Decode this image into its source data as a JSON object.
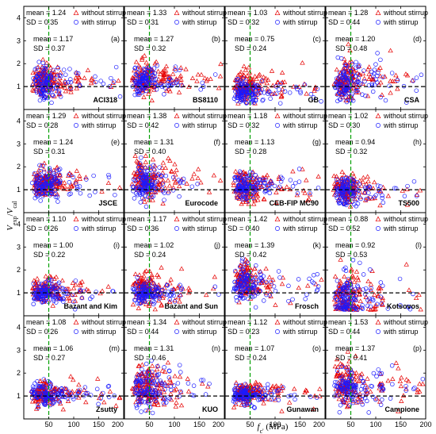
{
  "ylabel": "V_exp/V_cal",
  "xlabel": "f_c' (MPa)",
  "chart_data": {
    "type": "scatter",
    "layout": "4x4 grid of panels sharing axes",
    "xlim": [
      0,
      200
    ],
    "ylim": [
      0,
      4.5
    ],
    "xticks": [
      50,
      100,
      150,
      200
    ],
    "xtick_labels": [
      "50",
      "100",
      "150",
      "200"
    ],
    "yticks": [
      1,
      2,
      3,
      4
    ],
    "ytick_labels": [
      "1",
      "2",
      "3",
      "4"
    ],
    "reference_lines": {
      "horizontal_y": 1.0,
      "vertical_x": 50
    },
    "legend": {
      "placement": "top-right",
      "entries": [
        {
          "name": "without stirrup",
          "marker": "triangle",
          "color": "#e60000"
        },
        {
          "name": "with stirrup",
          "marker": "circle",
          "color": "#1a1aff"
        }
      ]
    },
    "panels": [
      {
        "letter": "(a)",
        "code": "ACI318",
        "without": {
          "mean": "1.24",
          "sd": "0.35"
        },
        "with": {
          "mean": "1.17",
          "sd": "0.37"
        }
      },
      {
        "letter": "(b)",
        "code": "BS8110",
        "without": {
          "mean": "1.33",
          "sd": "0.31"
        },
        "with": {
          "mean": "1.27",
          "sd": "0.32"
        }
      },
      {
        "letter": "(c)",
        "code": "GB",
        "without": {
          "mean": "1.03",
          "sd": "0.32"
        },
        "with": {
          "mean": "0.75",
          "sd": "0.24"
        }
      },
      {
        "letter": "(d)",
        "code": "CSA",
        "without": {
          "mean": "1.28",
          "sd": "0.44"
        },
        "with": {
          "mean": "1.20",
          "sd": "0.48"
        }
      },
      {
        "letter": "(e)",
        "code": "JSCE",
        "without": {
          "mean": "1.29",
          "sd": "0.28"
        },
        "with": {
          "mean": "1.24",
          "sd": "0.31"
        }
      },
      {
        "letter": "(f)",
        "code": "Eurocode",
        "without": {
          "mean": "1.38",
          "sd": "0.42"
        },
        "with": {
          "mean": "1.31",
          "sd": "0.40"
        }
      },
      {
        "letter": "(g)",
        "code": "CEB-FIP MC90",
        "without": {
          "mean": "1.18",
          "sd": "0.32"
        },
        "with": {
          "mean": "1.13",
          "sd": "0.28"
        }
      },
      {
        "letter": "(h)",
        "code": "TS500",
        "without": {
          "mean": "1.02",
          "sd": "0.30"
        },
        "with": {
          "mean": "0.94",
          "sd": "0.32"
        }
      },
      {
        "letter": "(i)",
        "code": "Bazant and Kim",
        "without": {
          "mean": "1.10",
          "sd": "0.26"
        },
        "with": {
          "mean": "1.00",
          "sd": "0.22"
        }
      },
      {
        "letter": "(j)",
        "code": "Bazant and Sun",
        "without": {
          "mean": "1.17",
          "sd": "0.36"
        },
        "with": {
          "mean": "1.02",
          "sd": "0.24"
        }
      },
      {
        "letter": "(k)",
        "code": "Frosch",
        "without": {
          "mean": "1.42",
          "sd": "0.40"
        },
        "with": {
          "mean": "1.39",
          "sd": "0.42"
        }
      },
      {
        "letter": "(l)",
        "code": "Kotsovos",
        "without": {
          "mean": "0.88",
          "sd": "0.52"
        },
        "with": {
          "mean": "0.92",
          "sd": "0.53"
        }
      },
      {
        "letter": "(m)",
        "code": "Zsutty",
        "without": {
          "mean": "1.08",
          "sd": "0.26"
        },
        "with": {
          "mean": "1.06",
          "sd": "0.27"
        }
      },
      {
        "letter": "(n)",
        "code": "KUO",
        "without": {
          "mean": "1.34",
          "sd": "0.44"
        },
        "with": {
          "mean": "1.31",
          "sd": "0.46"
        }
      },
      {
        "letter": "(o)",
        "code": "Gunawan",
        "without": {
          "mean": "1.12",
          "sd": "0.23"
        },
        "with": {
          "mean": "1.07",
          "sd": "0.24"
        }
      },
      {
        "letter": "(p)",
        "code": "Campione",
        "without": {
          "mean": "1.53",
          "sd": "0.44"
        },
        "with": {
          "mean": "1.37",
          "sd": "0.41"
        }
      }
    ]
  }
}
